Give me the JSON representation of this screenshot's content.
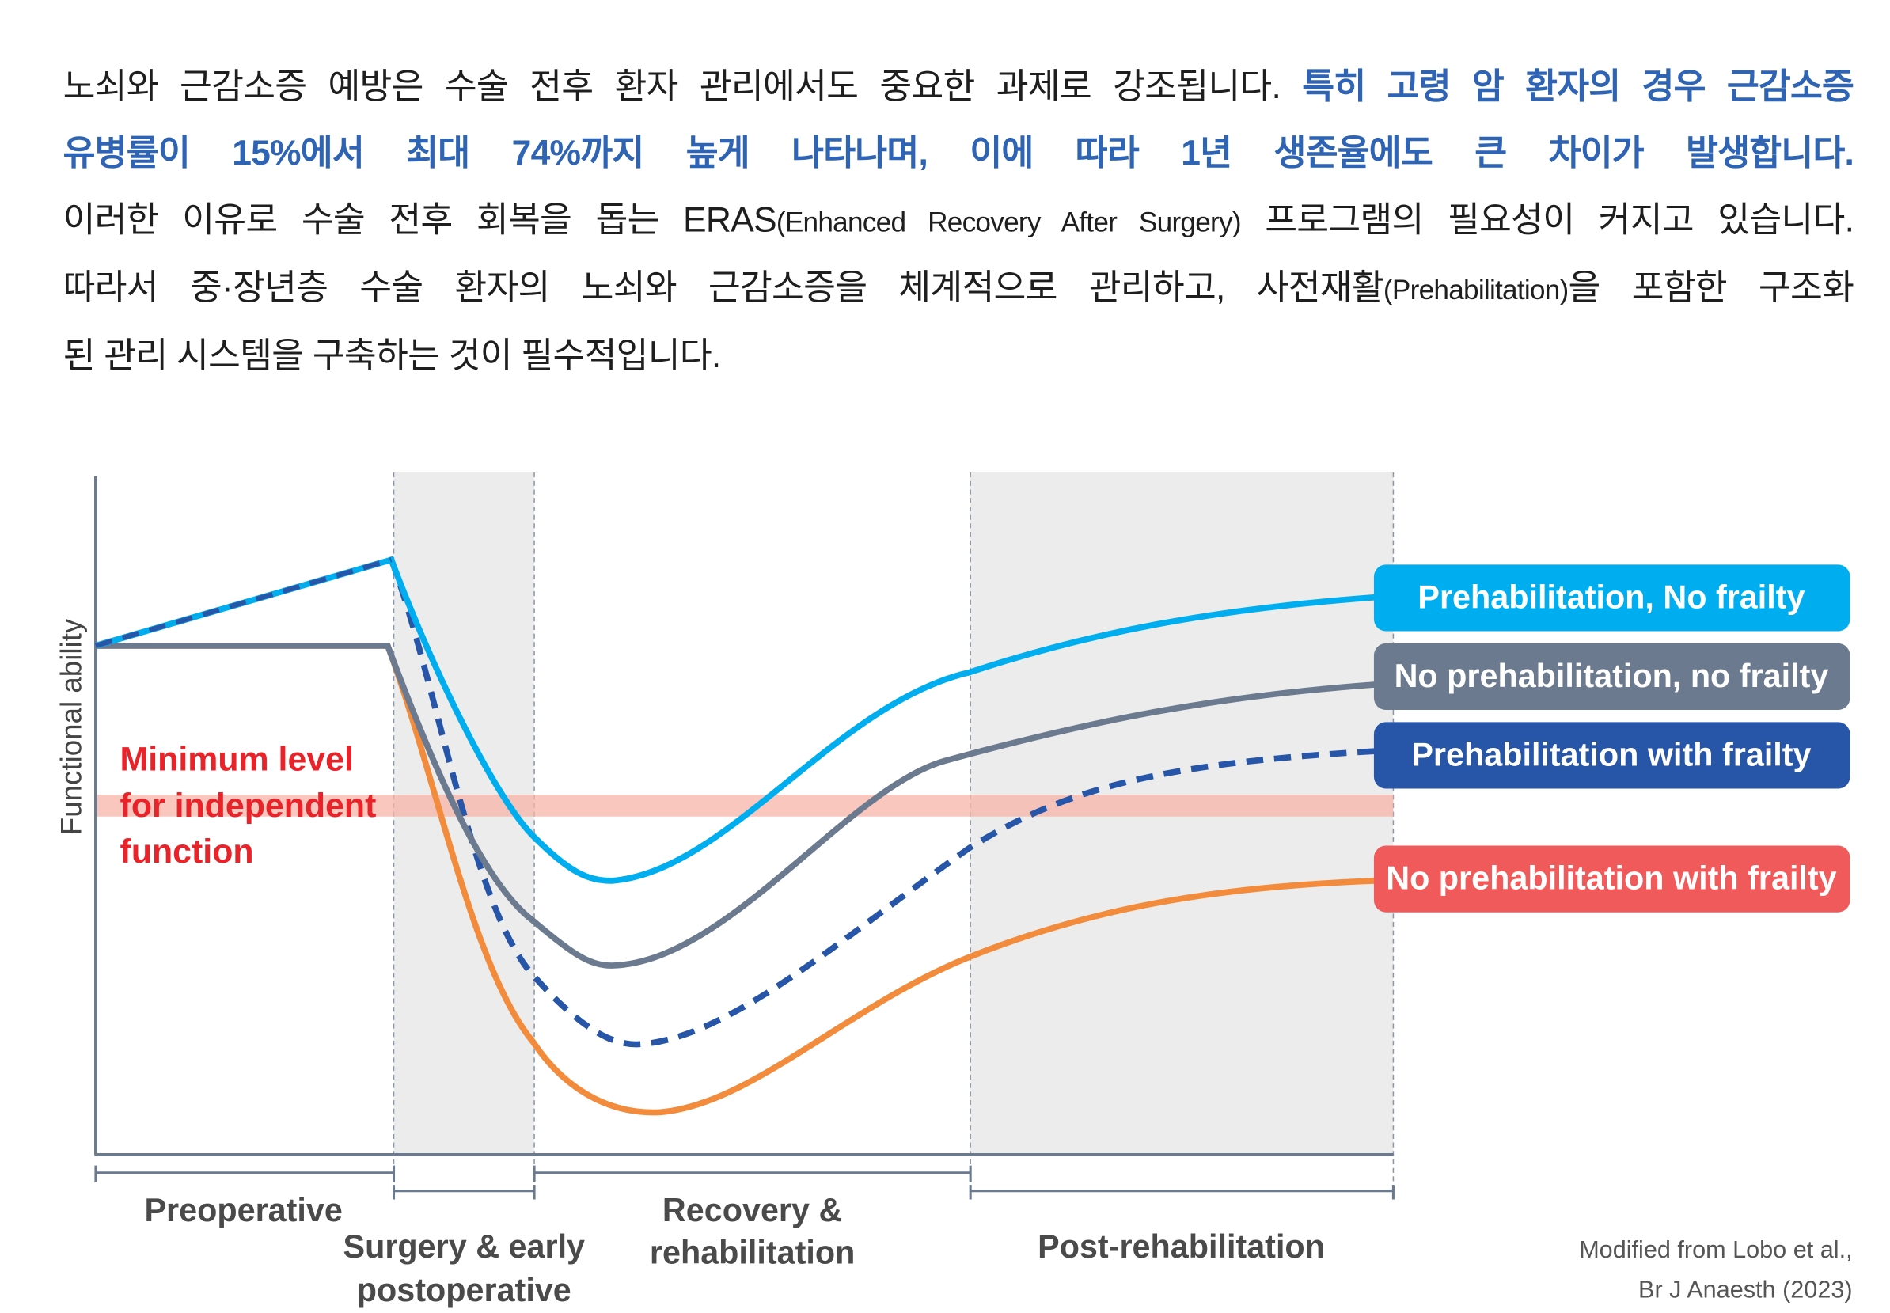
{
  "intro": {
    "line1_plain": "노쇠와 근감소증 예방은 수술 전후 환자 관리에서도 중요한 과제로 강조됩니다. ",
    "line1_highlight": "특히 고령 암 환자의 경우 근감소증",
    "line2_highlight": "유병률이 15%에서 최대 74%까지 높게 나타나며, 이에 따라 1년 생존율에도 큰 차이가 발생합니다.",
    "line3_a": "이러한 이유로 수술 전후 회복을 돕는 ERAS",
    "line3_small": "(Enhanced Recovery After Surgery)",
    "line3_b": " 프로그램의 필요성이 커지고 있습니다.",
    "line4_a": "따라서 중·장년층 수술 환자의 노쇠와 근감소증을 체계적으로 관리하고, 사전재활",
    "line4_small": "(Prehabilitation)",
    "line4_b": "을 포함한 구조화",
    "line5": "된 관리 시스템을 구축하는 것이 필수적입니다.",
    "highlight_color": "#2f64b5"
  },
  "diagram": {
    "y_axis_label": "Functional ability",
    "threshold": {
      "lines": [
        "Minimum level",
        "for independent",
        "function"
      ],
      "color": "#e8232a",
      "band_color": "#f7b4a8"
    },
    "phases": [
      {
        "lines": [
          "Preoperative"
        ]
      },
      {
        "lines": [
          "Surgery & early",
          "postoperative"
        ]
      },
      {
        "lines": [
          "Recovery &",
          "rehabilitation"
        ]
      },
      {
        "lines": [
          "Post-rehabilitation"
        ]
      }
    ],
    "series": [
      {
        "name": "Prehabilitation, No frailty",
        "color": "#00aeef",
        "style": "solid"
      },
      {
        "name": "No prehabilitation, no frailty",
        "color": "#6b7a8f",
        "style": "solid"
      },
      {
        "name": "Prehabilitation with frailty",
        "color": "#2756a8",
        "style": "dashed"
      },
      {
        "name": "No prehabilitation with frailty",
        "color": "#f05a5a",
        "line_color": "#f28c3c",
        "style": "solid"
      }
    ],
    "source": [
      "Modified from Lobo et al.,",
      "Br J Anaesth (2023)"
    ]
  }
}
